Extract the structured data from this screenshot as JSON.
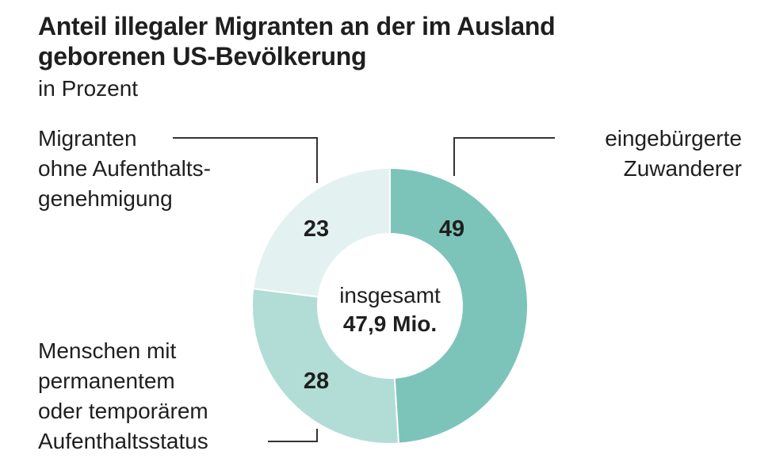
{
  "title_lines": [
    "Anteil illegaler Migranten an der im Ausland",
    "geborenen US-Bevölkerung"
  ],
  "subtitle": "in Prozent",
  "chart_data": {
    "type": "pie",
    "donut": true,
    "title": "Anteil illegaler Migranten an der im Ausland geborenen US-Bevölkerung",
    "subtitle": "in Prozent",
    "center_label": [
      "insgesamt",
      "47,9 Mio."
    ],
    "slices": [
      {
        "label": "eingebürgerte Zuwanderer",
        "label_lines": [
          "eingebürgerte",
          "Zuwanderer"
        ],
        "value": 49,
        "color": "#7cc4ba"
      },
      {
        "label": "Menschen mit permanentem oder temporärem Aufenthaltsstatus",
        "label_lines": [
          "Menschen mit",
          "permanentem",
          "oder temporärem",
          "Aufenthaltsstatus"
        ],
        "value": 28,
        "color": "#b1ddd6"
      },
      {
        "label": "Migranten ohne Aufenthaltsgenehmigung",
        "label_lines": [
          "Migranten",
          "ohne Aufenthalts-",
          "genehmigung"
        ],
        "value": 23,
        "color": "#e3f2f0"
      }
    ]
  }
}
